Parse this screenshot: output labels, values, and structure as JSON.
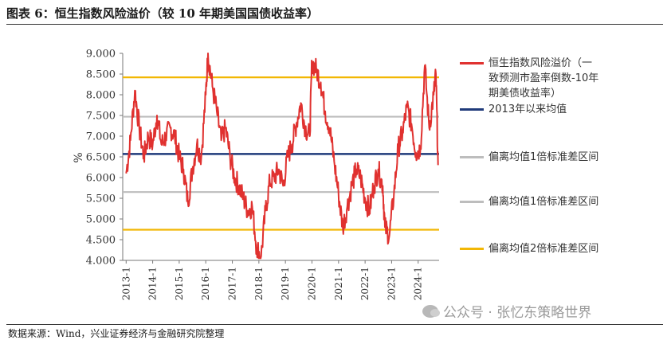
{
  "figure": {
    "title": "图表 6：恒生指数风险溢价（较 10 年期美国国债收益率）",
    "source": "数据来源：Wind，兴业证券经济与金融研究院整理",
    "watermark": "公众号 · 张忆东策略世界"
  },
  "chart_data": {
    "type": "line",
    "ylabel": "%",
    "ylim": [
      4.0,
      9.0
    ],
    "yticks": [
      "4.000",
      "4.500",
      "5.000",
      "5.500",
      "6.000",
      "6.500",
      "7.000",
      "7.500",
      "8.000",
      "8.500",
      "9.000"
    ],
    "xticks": [
      "2013-1",
      "2014-1",
      "2015-1",
      "2016-1",
      "2017-1",
      "2018-1",
      "2019-1",
      "2020-1",
      "2021-1",
      "2022-1",
      "2023-1",
      "2024-1"
    ],
    "grid": false,
    "legend_position": "right",
    "series": [
      {
        "name": "恒生指数风险溢价（一致预测市盈率倒数-10年期美债收益率）",
        "color": "#e0312f",
        "x": [
          "2013-01",
          "2013-03",
          "2013-05",
          "2013-07",
          "2013-09",
          "2013-11",
          "2014-01",
          "2014-03",
          "2014-05",
          "2014-07",
          "2014-09",
          "2014-11",
          "2015-01",
          "2015-03",
          "2015-05",
          "2015-07",
          "2015-09",
          "2015-11",
          "2016-01",
          "2016-02",
          "2016-04",
          "2016-06",
          "2016-08",
          "2016-10",
          "2016-12",
          "2017-02",
          "2017-04",
          "2017-06",
          "2017-08",
          "2017-10",
          "2017-12",
          "2018-02",
          "2018-04",
          "2018-06",
          "2018-08",
          "2018-10",
          "2018-12",
          "2019-02",
          "2019-04",
          "2019-06",
          "2019-08",
          "2019-10",
          "2019-12",
          "2020-01",
          "2020-03",
          "2020-05",
          "2020-07",
          "2020-09",
          "2020-11",
          "2021-01",
          "2021-03",
          "2021-05",
          "2021-07",
          "2021-09",
          "2021-11",
          "2022-01",
          "2022-03",
          "2022-05",
          "2022-07",
          "2022-09",
          "2022-10",
          "2022-12",
          "2023-02",
          "2023-04",
          "2023-06",
          "2023-08",
          "2023-10",
          "2023-12",
          "2024-02",
          "2024-04",
          "2024-06",
          "2024-08",
          "2024-09",
          "2024-10"
        ],
        "values": [
          6.1,
          6.9,
          8.1,
          7.2,
          6.5,
          7.0,
          6.8,
          7.5,
          6.8,
          7.0,
          7.2,
          7.0,
          6.5,
          6.2,
          5.4,
          6.2,
          6.8,
          6.5,
          8.0,
          9.0,
          8.2,
          7.6,
          6.9,
          7.2,
          6.5,
          6.0,
          5.8,
          5.5,
          5.2,
          5.3,
          4.3,
          4.1,
          5.2,
          5.9,
          6.0,
          6.2,
          5.8,
          6.5,
          6.8,
          7.3,
          7.8,
          7.2,
          7.0,
          8.8,
          8.6,
          8.3,
          7.6,
          7.2,
          6.4,
          5.6,
          4.8,
          5.3,
          5.8,
          6.2,
          6.0,
          5.5,
          5.2,
          5.8,
          6.2,
          5.8,
          4.8,
          4.6,
          5.6,
          6.7,
          7.1,
          7.7,
          7.3,
          6.6,
          6.7,
          8.7,
          7.2,
          8.0,
          8.5,
          6.3
        ]
      },
      {
        "name": "2013年以来均值",
        "color": "#1f3a7a",
        "value": 6.57
      },
      {
        "name": "偏离均值1倍标准差区间",
        "color": "#bdbdbd",
        "value": 7.47
      },
      {
        "name": "偏离均值1倍标准差区间",
        "color": "#bdbdbd",
        "value": 5.65
      },
      {
        "name": "偏离均值2倍标准差区间",
        "color": "#f2b705",
        "value": 8.42
      },
      {
        "name": "偏离均值2倍标准差区间",
        "color": "#f2b705",
        "value": 4.74
      }
    ]
  },
  "legend": [
    {
      "label": "恒生指数风险溢价（一致预测市盈率倒数-10年期美债收益率）",
      "color": "#e0312f"
    },
    {
      "label": "2013年以来均值",
      "color": "#1f3a7a"
    },
    {
      "label": "偏离均值1倍标准差区间",
      "color": "#bdbdbd"
    },
    {
      "label": "偏离均值1倍标准差区间",
      "color": "#bdbdbd"
    },
    {
      "label": "偏离均值2倍标准差区间",
      "color": "#f2b705"
    }
  ]
}
